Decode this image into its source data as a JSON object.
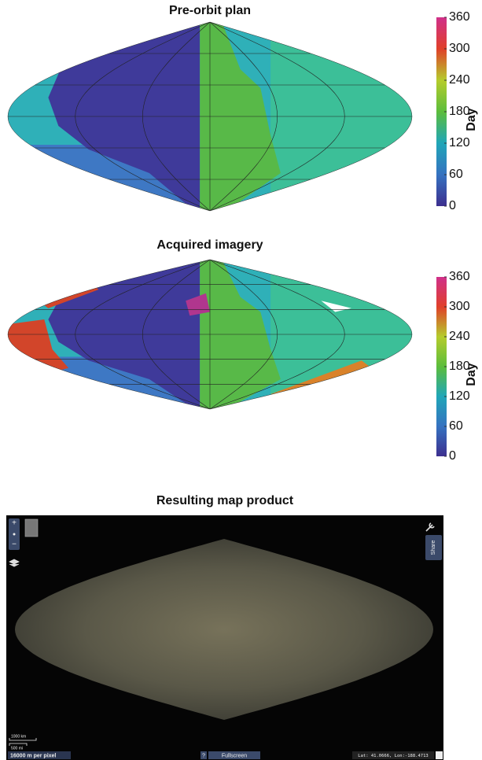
{
  "panels": [
    {
      "title": "Pre-orbit plan",
      "colorbar": {
        "label": "Day",
        "lim": [
          0,
          360
        ],
        "ticks": [
          0,
          60,
          120,
          180,
          240,
          300,
          360
        ],
        "colors": [
          "#3d2f8f",
          "#3572c0",
          "#20a6b8",
          "#5cbd3c",
          "#b5cc2c",
          "#e0402a",
          "#d0308a"
        ]
      }
    },
    {
      "title": "Acquired imagery",
      "colorbar": {
        "label": "Day",
        "lim": [
          0,
          360
        ],
        "ticks": [
          0,
          60,
          120,
          180,
          240,
          300,
          360
        ],
        "colors": [
          "#3d2f8f",
          "#3572c0",
          "#20a6b8",
          "#5cbd3c",
          "#b5cc2c",
          "#e0402a",
          "#d0308a"
        ]
      }
    }
  ],
  "viewer": {
    "title": "Resulting map product",
    "zoom_in": "+",
    "zoom_out": "−",
    "share": "Share",
    "scale_km": "1000 km",
    "scale_mi": "500 mi",
    "resolution": "16000 m per pixel",
    "help": "?",
    "fullscreen": "Fullscreen",
    "coordinates": "Lat: 41.0666, Lon:-188.4713"
  }
}
